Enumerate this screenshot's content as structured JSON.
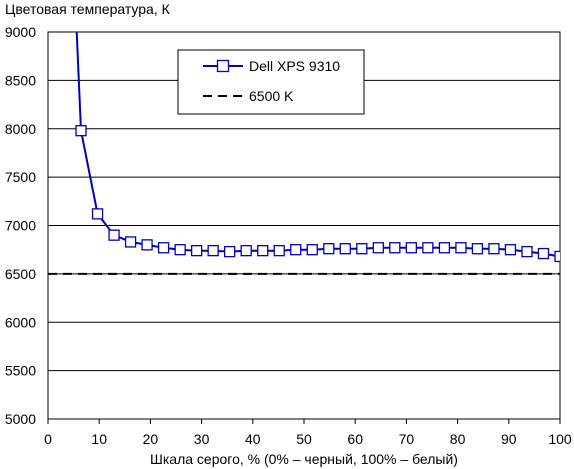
{
  "chart_data": {
    "type": "line",
    "title": "",
    "ylabel": "Цветовая температура, К",
    "xlabel": "Шкала серого, % (0% – черный, 100% – белый)",
    "xlim": [
      0,
      100
    ],
    "ylim": [
      5000,
      9000
    ],
    "x_ticks": [
      0,
      10,
      20,
      30,
      40,
      50,
      60,
      70,
      80,
      90,
      100
    ],
    "y_ticks": [
      5000,
      5500,
      6000,
      6500,
      7000,
      7500,
      8000,
      8500,
      9000
    ],
    "grid": "horizontal",
    "legend_position": "top-center",
    "series": [
      {
        "name": "Dell XPS 9310",
        "color": "#0000c0",
        "marker": "square",
        "x": [
          6.45,
          9.68,
          12.9,
          16.13,
          19.35,
          22.58,
          25.81,
          29.03,
          32.26,
          35.48,
          38.71,
          41.94,
          45.16,
          48.39,
          51.61,
          54.84,
          58.06,
          61.29,
          64.52,
          67.74,
          70.97,
          74.19,
          77.42,
          80.65,
          83.87,
          87.1,
          90.32,
          93.55,
          96.77,
          100
        ],
        "y": [
          7980,
          7120,
          6900,
          6830,
          6800,
          6770,
          6750,
          6740,
          6740,
          6730,
          6740,
          6740,
          6740,
          6750,
          6750,
          6760,
          6760,
          6760,
          6770,
          6770,
          6770,
          6770,
          6770,
          6770,
          6760,
          6760,
          6750,
          6730,
          6710,
          6680
        ],
        "leading_segment": [
          [
            5.6,
            9000
          ],
          [
            6.45,
            7980
          ]
        ]
      },
      {
        "name": "6500 K",
        "color": "#000000",
        "style": "dashed",
        "y_constant": 6500
      }
    ]
  }
}
